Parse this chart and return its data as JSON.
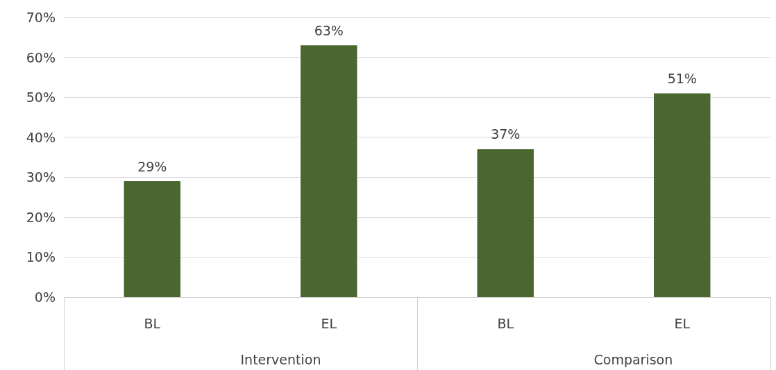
{
  "chart_data": {
    "type": "bar",
    "categories": [
      "BL",
      "EL",
      "BL",
      "EL"
    ],
    "values": [
      29,
      63,
      37,
      51
    ],
    "value_labels": [
      "29%",
      "63%",
      "37%",
      "51%"
    ],
    "color": "#4a6730",
    "ylim": [
      0,
      70
    ],
    "yticks": [
      {
        "value": 0,
        "label": "0%"
      },
      {
        "value": 10,
        "label": "10%"
      },
      {
        "value": 20,
        "label": "20%"
      },
      {
        "value": 30,
        "label": "30%"
      },
      {
        "value": 40,
        "label": "40%"
      },
      {
        "value": 50,
        "label": "50%"
      },
      {
        "value": 60,
        "label": "60%"
      },
      {
        "value": 70,
        "label": "70%"
      }
    ],
    "grid": "y",
    "annotations": [
      "Intervention",
      "Comparison"
    ]
  }
}
